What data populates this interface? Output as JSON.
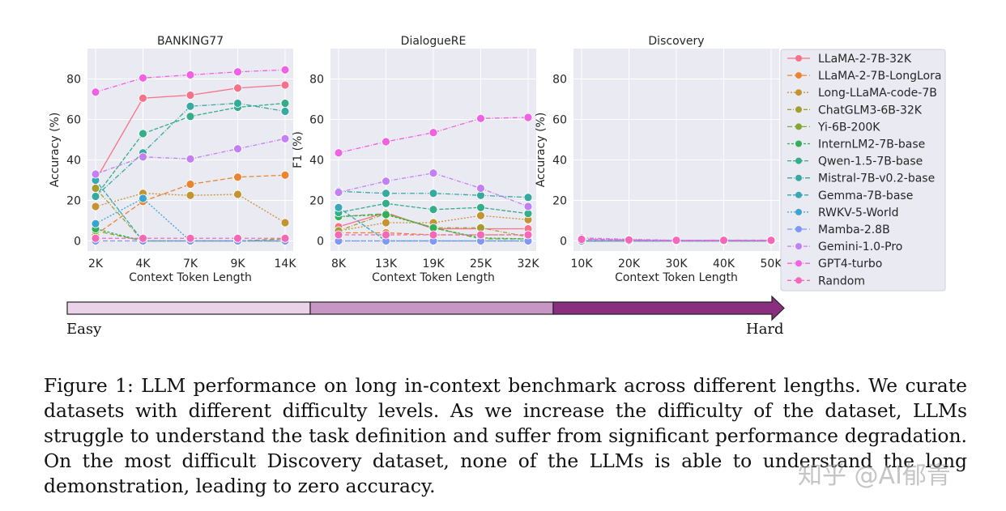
{
  "palette": [
    "#f77189",
    "#e98531",
    "#c39532",
    "#a69d31",
    "#84a731",
    "#35ae5a",
    "#36ad8a",
    "#37aaa0",
    "#39a7b5",
    "#3ba3d0",
    "#8197f4",
    "#c280f4",
    "#f161e4",
    "#f568b8"
  ],
  "chart_data": [
    {
      "type": "line",
      "title": "BANKING77",
      "xlabel": "Context Token Length",
      "ylabel": "Accuracy (%)",
      "categories": [
        "2K",
        "4K",
        "7K",
        "9K",
        "14K"
      ],
      "ylim": [
        -5,
        95
      ],
      "yticks": [
        0,
        20,
        40,
        60,
        80
      ],
      "grid": true,
      "series": [
        {
          "name": "LLaMA-2-7B-32K",
          "values": [
            30,
            70.5,
            72,
            75.5,
            77
          ]
        },
        {
          "name": "LLaMA-2-7B-LongLora",
          "values": [
            3,
            19.5,
            28,
            31.5,
            32.5
          ]
        },
        {
          "name": "Long-LLaMA-code-7B",
          "values": [
            17,
            23.5,
            22.5,
            23,
            9
          ]
        },
        {
          "name": "ChatGLM3-6B-32K",
          "values": [
            26,
            0,
            0,
            0,
            0
          ]
        },
        {
          "name": "Yi-6B-200K",
          "values": [
            5,
            0,
            0,
            0,
            1
          ]
        },
        {
          "name": "InternLM2-7B-base",
          "values": [
            6,
            0,
            0,
            0,
            0
          ]
        },
        {
          "name": "Qwen-1.5-7B-base",
          "values": [
            22,
            53,
            61.5,
            66,
            68
          ]
        },
        {
          "name": "Mistral-7B-v0.2-base",
          "values": [
            22,
            43.5,
            66.5,
            68,
            64
          ]
        },
        {
          "name": "Gemma-7B-base",
          "values": [
            30,
            0,
            0,
            0,
            0
          ]
        },
        {
          "name": "RWKV-5-World",
          "values": [
            8.5,
            21,
            0,
            0,
            0
          ]
        },
        {
          "name": "Mamba-2.8B",
          "values": [
            0,
            0,
            0,
            0,
            0
          ]
        },
        {
          "name": "Gemini-1.0-Pro",
          "values": [
            33,
            41.5,
            40.5,
            45.5,
            50.5
          ]
        },
        {
          "name": "GPT4-turbo",
          "values": [
            73.5,
            80.5,
            82,
            83.5,
            84.5
          ]
        },
        {
          "name": "Random",
          "values": [
            1.3,
            1.3,
            1.3,
            1.3,
            1.3
          ]
        }
      ]
    },
    {
      "type": "line",
      "title": "DialogueRE",
      "xlabel": "Context Token Length",
      "ylabel": "F1 (%)",
      "categories": [
        "8K",
        "13K",
        "19K",
        "25K",
        "32K"
      ],
      "ylim": [
        -5,
        95
      ],
      "yticks": [
        0,
        20,
        40,
        60,
        80
      ],
      "grid": true,
      "series": [
        {
          "name": "LLaMA-2-7B-32K",
          "values": [
            7,
            14,
            6,
            6,
            6
          ]
        },
        {
          "name": "LLaMA-2-7B-LongLora",
          "values": [
            4,
            4,
            3,
            3,
            3
          ]
        },
        {
          "name": "Long-LLaMA-code-7B",
          "values": [
            5,
            9,
            9,
            12.5,
            10.5
          ]
        },
        {
          "name": "ChatGLM3-6B-32K",
          "values": [
            5,
            13.5,
            6.5,
            6.5,
            2
          ]
        },
        {
          "name": "Yi-6B-200K",
          "values": [
            12,
            13.5,
            6.5,
            1,
            1
          ]
        },
        {
          "name": "InternLM2-7B-base",
          "values": [
            12,
            13,
            6.5,
            1.5,
            1
          ]
        },
        {
          "name": "Qwen-1.5-7B-base",
          "values": [
            14,
            18.5,
            15.5,
            16.5,
            13.5
          ]
        },
        {
          "name": "Mistral-7B-v0.2-base",
          "values": [
            24.5,
            23.5,
            23.5,
            22.5,
            21.5
          ]
        },
        {
          "name": "Gemma-7B-base",
          "values": [
            16.5,
            0,
            0,
            0,
            0
          ]
        },
        {
          "name": "RWKV-5-World",
          "values": [
            0,
            0,
            0,
            0,
            0
          ]
        },
        {
          "name": "Mamba-2.8B",
          "values": [
            0,
            0,
            0,
            0,
            0
          ]
        },
        {
          "name": "Gemini-1.0-Pro",
          "values": [
            24,
            29.5,
            33.5,
            26,
            17
          ]
        },
        {
          "name": "GPT4-turbo",
          "values": [
            43.5,
            49,
            53.5,
            60.5,
            61
          ]
        },
        {
          "name": "Random",
          "values": [
            3,
            3,
            3,
            3,
            3
          ]
        }
      ]
    },
    {
      "type": "line",
      "title": "Discovery",
      "xlabel": "Context Token Length",
      "ylabel": "Accuracy (%)",
      "categories": [
        "10K",
        "20K",
        "30K",
        "40K",
        "50K"
      ],
      "ylim": [
        -5,
        95
      ],
      "yticks": [
        0,
        20,
        40,
        60,
        80
      ],
      "grid": true,
      "series": [
        {
          "name": "LLaMA-2-7B-32K",
          "values": [
            0,
            0,
            0,
            0,
            0
          ]
        },
        {
          "name": "LLaMA-2-7B-LongLora",
          "values": [
            0,
            0,
            0,
            0,
            0
          ]
        },
        {
          "name": "Long-LLaMA-code-7B",
          "values": [
            0,
            0,
            0,
            0,
            0
          ]
        },
        {
          "name": "ChatGLM3-6B-32K",
          "values": [
            0,
            0,
            0,
            0,
            0
          ]
        },
        {
          "name": "Yi-6B-200K",
          "values": [
            0,
            0,
            0,
            0,
            0
          ]
        },
        {
          "name": "InternLM2-7B-base",
          "values": [
            0,
            0,
            0,
            0,
            0
          ]
        },
        {
          "name": "Qwen-1.5-7B-base",
          "values": [
            0,
            0,
            0,
            0,
            0
          ]
        },
        {
          "name": "Mistral-7B-v0.2-base",
          "values": [
            0,
            0,
            0,
            0,
            0
          ]
        },
        {
          "name": "Gemma-7B-base",
          "values": [
            0,
            0,
            0,
            0,
            0
          ]
        },
        {
          "name": "RWKV-5-World",
          "values": [
            0,
            0,
            0,
            0,
            0
          ]
        },
        {
          "name": "Mamba-2.8B",
          "values": [
            0,
            0,
            0,
            0,
            0
          ]
        },
        {
          "name": "Gemini-1.0-Pro",
          "values": [
            1.5,
            0.8,
            0.3,
            0.4,
            0.4
          ]
        },
        {
          "name": "GPT4-turbo",
          "values": [
            1,
            0.5,
            0.3,
            0.3,
            0.3
          ]
        },
        {
          "name": "Random",
          "values": [
            0.8,
            0.5,
            0.3,
            0.3,
            0.3
          ]
        }
      ]
    }
  ],
  "legend": {
    "placement": "right"
  },
  "difficulty": {
    "easy": "Easy",
    "hard": "Hard",
    "colors": [
      "#ead2e8",
      "#c796c4",
      "#8a2f7f"
    ]
  },
  "caption": "Figure 1: LLM performance on long in-context benchmark across different lengths. We curate datasets with different difficulty levels. As we increase the difficulty of the dataset, LLMs struggle to understand the task definition and suffer from significant performance degradation. On the most difficult Discovery dataset, none of the LLMs is able to understand the long demonstration, leading to zero accuracy.",
  "watermark": "知乎 @AI郁青"
}
